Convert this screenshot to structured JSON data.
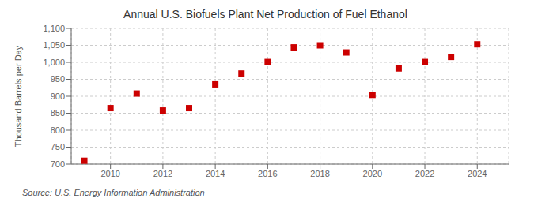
{
  "chart_data": {
    "type": "scatter",
    "title": "Annual U.S. Biofuels Plant Net Production of Fuel Ethanol",
    "ylabel": "Thousand Barrels per Day",
    "annotation": "Source: U.S. Energy Information Administration",
    "x": [
      2009,
      2010,
      2011,
      2012,
      2013,
      2014,
      2015,
      2016,
      2017,
      2018,
      2019,
      2020,
      2021,
      2022,
      2023,
      2024
    ],
    "values": [
      710,
      865,
      908,
      858,
      865,
      935,
      967,
      1001,
      1044,
      1050,
      1029,
      904,
      982,
      1001,
      1016,
      1053
    ],
    "color": "#cc0000",
    "marker": "square",
    "xlim": [
      2008.5,
      2025.2
    ],
    "xticks": [
      2010,
      2012,
      2014,
      2016,
      2018,
      2020,
      2022,
      2024
    ],
    "ylim": [
      700,
      1100
    ],
    "yticks": [
      700,
      750,
      800,
      850,
      900,
      950,
      {
        "value": 1000,
        "label": "1,000"
      },
      {
        "value": 1050,
        "label": "1,050"
      },
      {
        "value": 1100,
        "label": "1,100"
      }
    ],
    "grid": true
  }
}
